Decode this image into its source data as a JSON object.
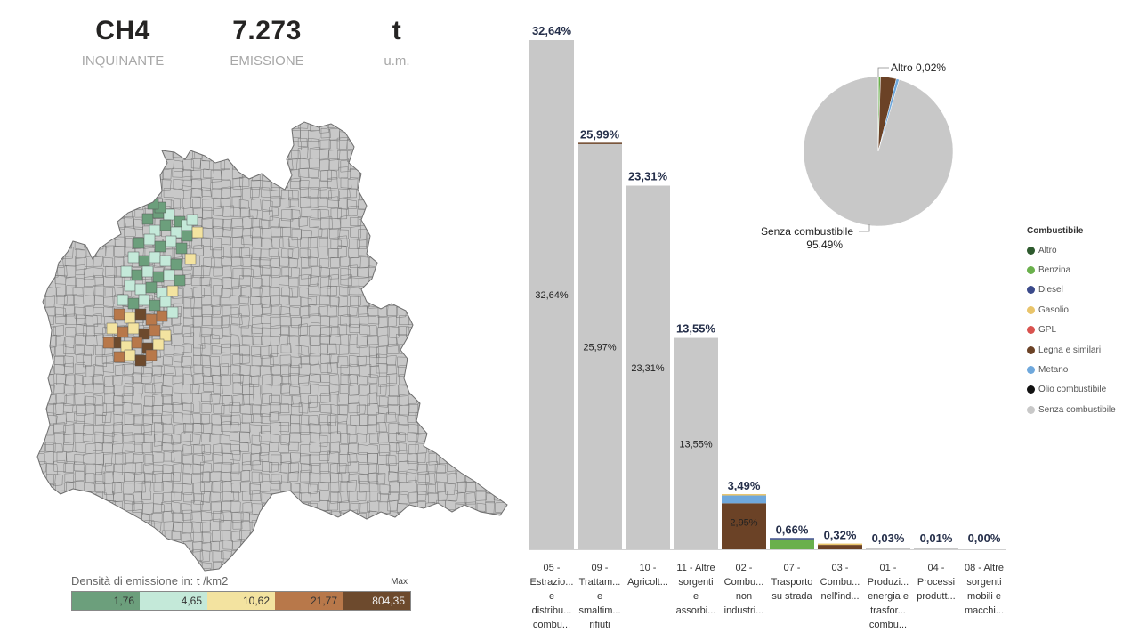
{
  "kpis": {
    "pollutant": {
      "value": "CH4",
      "label": "INQUINANTE"
    },
    "emission": {
      "value": "7.273",
      "label": "EMISSIONE"
    },
    "unit": {
      "value": "t",
      "label": "u.m."
    }
  },
  "density_legend": {
    "title": "Densità di emissione in:  t /km2",
    "max_label": "Max",
    "segments": [
      {
        "value": "1,76",
        "color": "#6c9f7c"
      },
      {
        "value": "4,65",
        "color": "#c4e9d9"
      },
      {
        "value": "10,62",
        "color": "#f3e3a0"
      },
      {
        "value": "21,77",
        "color": "#b8784a"
      },
      {
        "value": "804,35",
        "color": "#6d4a2d"
      }
    ]
  },
  "map_colors": {
    "base": "#c8c8c8",
    "border": "#6e6e6e"
  },
  "chart_data": [
    {
      "type": "bar",
      "stacked": true,
      "categories": [
        [
          "05 -",
          "Estrazio...",
          "e",
          "distribu...",
          "combu..."
        ],
        [
          "09 -",
          "Trattam...",
          "e",
          "smaltim...",
          "rifiuti"
        ],
        [
          "10 -",
          "Agricolt..."
        ],
        [
          "11 - Altre",
          "sorgenti",
          "e",
          "assorbi..."
        ],
        [
          "02 -",
          "Combu...",
          "non",
          "industri..."
        ],
        [
          "07 -",
          "Trasporto",
          "su strada"
        ],
        [
          "03 -",
          "Combu...",
          "nell'ind..."
        ],
        [
          "01 -",
          "Produzi...",
          "energia e",
          "trasfor...",
          "combu..."
        ],
        [
          "04 -",
          "Processi",
          "produtt..."
        ],
        [
          "08 - Altre",
          "sorgenti",
          "mobili e",
          "macchi..."
        ]
      ],
      "totals": [
        32.64,
        25.99,
        23.31,
        13.55,
        3.49,
        0.66,
        0.32,
        0.03,
        0.01,
        0.0
      ],
      "total_labels": [
        "32,64%",
        "25,99%",
        "23,31%",
        "13,55%",
        "3,49%",
        "0,66%",
        "0,32%",
        "0,03%",
        "0,01%",
        "0,00%"
      ],
      "inner_labels": [
        "32,64%",
        "25,97%",
        "23,31%",
        "13,55%",
        "2,95%",
        "",
        "",
        "",
        "",
        ""
      ],
      "series": [
        {
          "name": "Senza combustibile",
          "color": "#c8c8c8",
          "values": [
            32.64,
            25.97,
            23.31,
            13.55,
            0.0,
            0.0,
            0.0,
            0.03,
            0.01,
            0.0
          ]
        },
        {
          "name": "Legna e similari",
          "color": "#6b4226",
          "values": [
            0,
            0.02,
            0,
            0,
            2.95,
            0,
            0.28,
            0,
            0,
            0
          ]
        },
        {
          "name": "Metano",
          "color": "#6fa8dc",
          "values": [
            0,
            0,
            0,
            0,
            0.5,
            0,
            0,
            0,
            0,
            0
          ]
        },
        {
          "name": "Gasolio",
          "color": "#e9c46a",
          "values": [
            0,
            0,
            0,
            0,
            0.04,
            0,
            0.04,
            0,
            0,
            0
          ]
        },
        {
          "name": "Benzina",
          "color": "#6ab04c",
          "values": [
            0,
            0,
            0,
            0,
            0,
            0.64,
            0,
            0,
            0,
            0
          ]
        },
        {
          "name": "Diesel",
          "color": "#3b4a8a",
          "values": [
            0,
            0,
            0,
            0,
            0,
            0.02,
            0,
            0,
            0,
            0
          ]
        }
      ],
      "ylim": [
        0,
        32.64
      ]
    },
    {
      "type": "pie",
      "slices": [
        {
          "name": "Senza combustibile",
          "value": 95.49,
          "color": "#c8c8c8"
        },
        {
          "name": "Legna e similari",
          "value": 3.41,
          "color": "#6b4226"
        },
        {
          "name": "Metano",
          "value": 0.62,
          "color": "#6fa8dc"
        },
        {
          "name": "Benzina",
          "value": 0.43,
          "color": "#6ab04c"
        },
        {
          "name": "Altro",
          "value": 0.02,
          "color": "#2e5a2e"
        },
        {
          "name": "Gasolio",
          "value": 0.03,
          "color": "#e9c46a"
        }
      ],
      "labels": [
        {
          "text": "Altro 0,02%"
        },
        {
          "text": "Senza combustibile",
          "sub": "95,49%"
        }
      ]
    }
  ],
  "fuel_legend": {
    "title": "Combustibile",
    "items": [
      {
        "label": "Altro",
        "color": "#2e5a2e"
      },
      {
        "label": "Benzina",
        "color": "#6ab04c"
      },
      {
        "label": "Diesel",
        "color": "#3b4a8a"
      },
      {
        "label": "Gasolio",
        "color": "#e9c46a"
      },
      {
        "label": "GPL",
        "color": "#d9534f"
      },
      {
        "label": "Legna e similari",
        "color": "#6b4226"
      },
      {
        "label": "Metano",
        "color": "#6fa8dc"
      },
      {
        "label": "Olio combustibile",
        "color": "#111111"
      },
      {
        "label": "Senza combustibile",
        "color": "#c8c8c8"
      }
    ]
  }
}
